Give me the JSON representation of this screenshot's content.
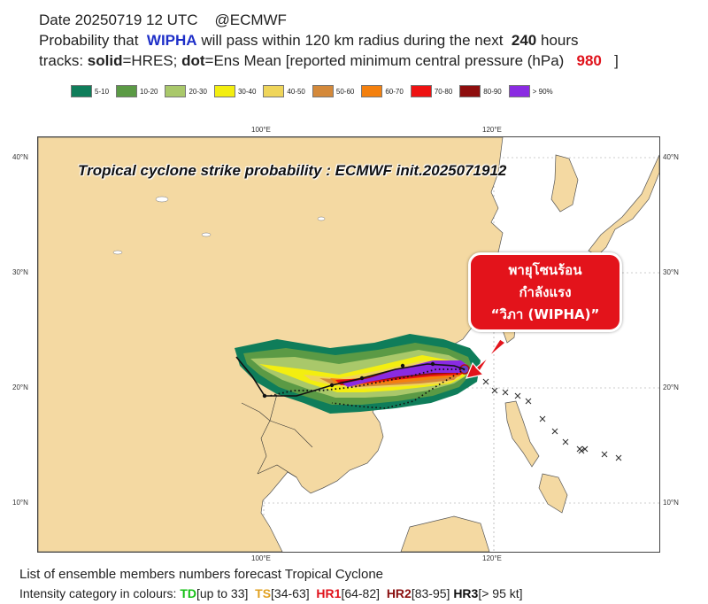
{
  "header": {
    "line1_prefix": "Date 20250719 12 UTC",
    "line1_handle": "@ECMWF",
    "line2_prefix": "Probability that",
    "storm_name": "WIPHA",
    "line2_middle": "will pass within 120 km radius during the next",
    "hours": "240",
    "hours_suffix": "hours",
    "line3_tracks": "tracks:",
    "line3_solid": "solid",
    "line3_hres": "=HRES;",
    "line3_dot": "dot",
    "line3_mid": "=Ens Mean [reported minimum central pressure (hPa)",
    "pressure": "980",
    "line3_end": "]"
  },
  "legend": [
    {
      "label": "5-10",
      "color": "#0f7d5a"
    },
    {
      "label": "10-20",
      "color": "#5b9a45"
    },
    {
      "label": "20-30",
      "color": "#a9c86a"
    },
    {
      "label": "30-40",
      "color": "#f3ee10"
    },
    {
      "label": "40-50",
      "color": "#efd55a"
    },
    {
      "label": "50-60",
      "color": "#d4893a"
    },
    {
      "label": "60-70",
      "color": "#f4800e"
    },
    {
      "label": "70-80",
      "color": "#ee1212"
    },
    {
      "label": "80-90",
      "color": "#8e0e0e"
    },
    {
      "label": "> 90%",
      "color": "#8a2be2"
    }
  ],
  "map": {
    "title": "Tropical cyclone strike probability : ECMWF init.2025071912",
    "lat_labels": [
      "40°N",
      "30°N",
      "20°N",
      "10°N"
    ],
    "lon_labels": [
      "100°E",
      "120°E"
    ],
    "land_color": "#f4d9a2",
    "sea_color": "#ffffff"
  },
  "callout": {
    "line1": "พายุโซนร้อน",
    "line2": "กำลังแรง",
    "line3": "“วิภา (WIPHA)”"
  },
  "footer": {
    "line1": "List of ensemble members numbers forecast Tropical Cyclone",
    "intensity_prefix": "Intensity category in colours:",
    "td": "TD",
    "td_range": "[up to 33]",
    "ts": "TS",
    "ts_range": "[34-63]",
    "hr1": "HR1",
    "hr1_range": "[64-82]",
    "hr2": "HR2",
    "hr2_range": "[83-95]",
    "hr3": "HR3",
    "hr3_range": "[> 95 kt]"
  }
}
